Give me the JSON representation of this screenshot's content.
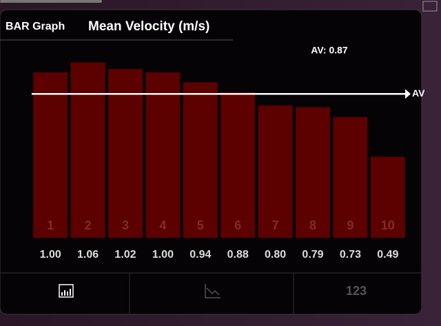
{
  "header": {
    "mode": "BAR Graph"
  },
  "chart_data": {
    "type": "bar",
    "title": "Mean Velocity (m/s)",
    "categories": [
      "1",
      "2",
      "3",
      "4",
      "5",
      "6",
      "7",
      "8",
      "9",
      "10"
    ],
    "values": [
      1.0,
      1.06,
      1.02,
      1.0,
      0.94,
      0.88,
      0.8,
      0.79,
      0.73,
      0.49
    ],
    "value_labels": [
      "1.00",
      "1.06",
      "1.02",
      "1.00",
      "0.94",
      "0.88",
      "0.80",
      "0.79",
      "0.73",
      "0.49"
    ],
    "color": "#5c0000",
    "ylim": [
      0,
      1.2
    ],
    "average": {
      "value": 0.87,
      "label": "AV: 0.87"
    },
    "average_marker": "AV"
  },
  "tabs": {
    "numbers": "123"
  }
}
